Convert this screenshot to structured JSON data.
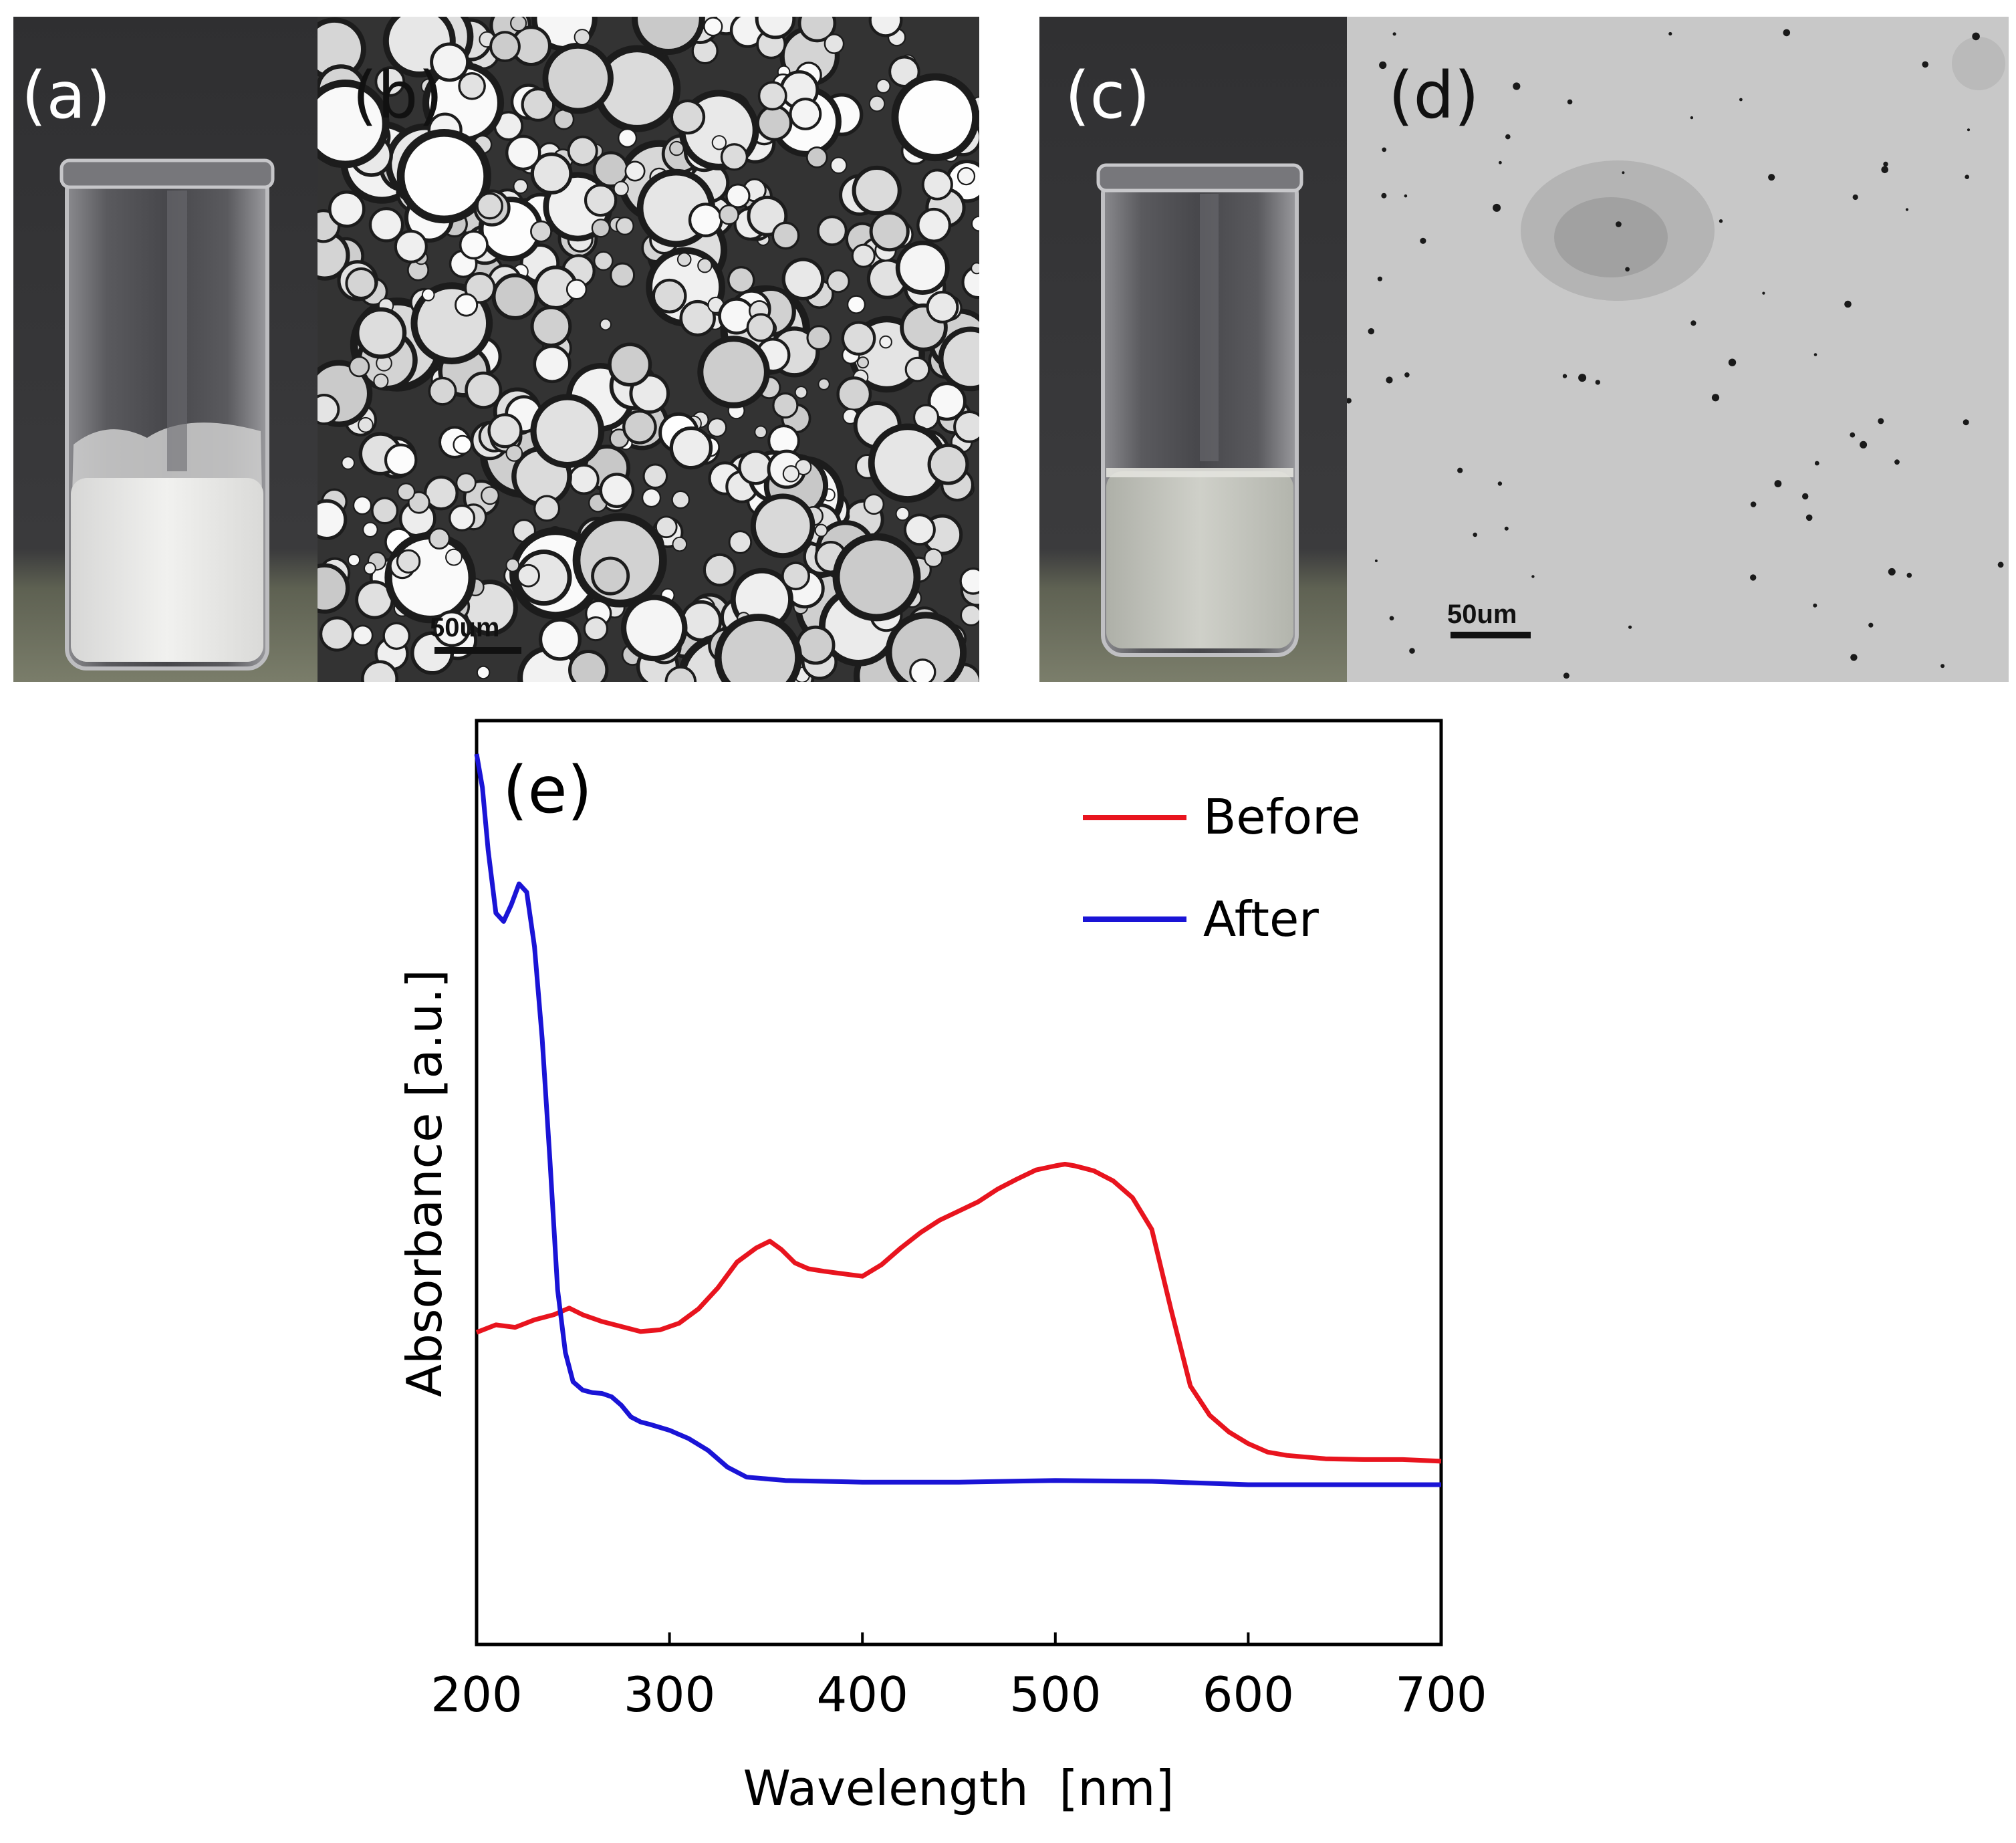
{
  "panels": {
    "a": {
      "label": "(a)"
    },
    "b": {
      "label": "(b)",
      "scale_bar": "50um"
    },
    "c": {
      "label": "(c)"
    },
    "d": {
      "label": "(d)",
      "scale_bar": "50um"
    }
  },
  "colors": {
    "before": "#e8141e",
    "after": "#1a14d6"
  },
  "chart_data": {
    "type": "line",
    "panel_label": "(e)",
    "xlabel": "Wavelength  [nm]",
    "ylabel": "Absorbance [a.u.]",
    "xlim": [
      200,
      700
    ],
    "ylim": [
      0,
      1
    ],
    "xticks": [
      "200",
      "300",
      "400",
      "500",
      "600",
      "700"
    ],
    "legend_position": "top-right",
    "series": [
      {
        "name": "Before",
        "color": "#e8141e",
        "x": [
          200,
          210,
          220,
          230,
          240,
          248,
          255,
          265,
          275,
          285,
          295,
          305,
          315,
          325,
          335,
          345,
          352,
          358,
          365,
          372,
          380,
          390,
          400,
          410,
          420,
          430,
          440,
          450,
          460,
          470,
          480,
          490,
          500,
          505,
          510,
          515,
          520,
          530,
          540,
          550,
          560,
          570,
          580,
          590,
          600,
          610,
          620,
          640,
          660,
          680,
          700
        ],
        "y": [
          0.309,
          0.318,
          0.315,
          0.324,
          0.33,
          0.338,
          0.33,
          0.322,
          0.316,
          0.31,
          0.312,
          0.32,
          0.337,
          0.362,
          0.393,
          0.41,
          0.418,
          0.408,
          0.392,
          0.385,
          0.382,
          0.379,
          0.376,
          0.39,
          0.41,
          0.428,
          0.443,
          0.454,
          0.465,
          0.48,
          0.492,
          0.503,
          0.508,
          0.51,
          0.508,
          0.505,
          0.502,
          0.49,
          0.47,
          0.432,
          0.336,
          0.245,
          0.21,
          0.19,
          0.176,
          0.166,
          0.162,
          0.158,
          0.157,
          0.157,
          0.155
        ]
      },
      {
        "name": "After",
        "color": "#1a14d6",
        "x": [
          200,
          203,
          206,
          210,
          214,
          218,
          222,
          226,
          230,
          234,
          238,
          242,
          246,
          250,
          255,
          260,
          265,
          270,
          275,
          280,
          285,
          290,
          300,
          310,
          320,
          330,
          340,
          360,
          400,
          450,
          500,
          550,
          600,
          650,
          700
        ],
        "y": [
          1.0,
          0.96,
          0.885,
          0.81,
          0.8,
          0.82,
          0.845,
          0.835,
          0.77,
          0.66,
          0.515,
          0.36,
          0.285,
          0.25,
          0.24,
          0.237,
          0.236,
          0.232,
          0.222,
          0.208,
          0.202,
          0.199,
          0.192,
          0.182,
          0.168,
          0.148,
          0.136,
          0.132,
          0.13,
          0.13,
          0.132,
          0.131,
          0.127,
          0.127,
          0.127
        ]
      }
    ]
  }
}
